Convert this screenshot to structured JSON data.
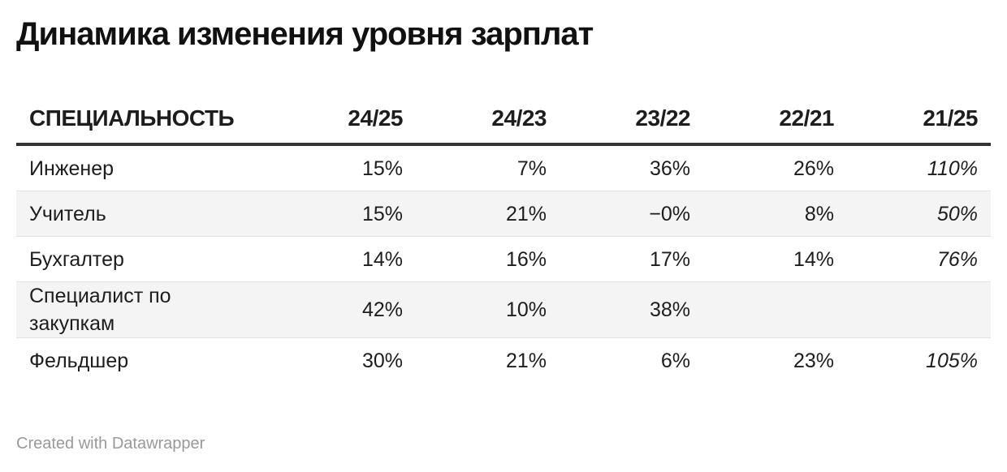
{
  "header": {
    "title": "Динамика изменения уровня зарплат"
  },
  "table": {
    "columns": [
      "СПЕЦИАЛЬНОСТЬ",
      "24/25",
      "24/23",
      "23/22",
      "22/21",
      "21/25"
    ],
    "rows": [
      [
        "Инженер",
        "15%",
        "7%",
        "36%",
        "26%",
        "110%"
      ],
      [
        "Учитель",
        "15%",
        "21%",
        "−0%",
        "8%",
        "50%"
      ],
      [
        "Бухгалтер",
        "14%",
        "16%",
        "17%",
        "14%",
        "76%"
      ],
      [
        "Специалист по закупкам",
        "42%",
        "10%",
        "38%",
        null,
        null
      ],
      [
        "Фельдшер",
        "30%",
        "21%",
        "6%",
        "23%",
        "105%"
      ]
    ]
  },
  "footer": {
    "credit": "Created with Datawrapper"
  }
}
